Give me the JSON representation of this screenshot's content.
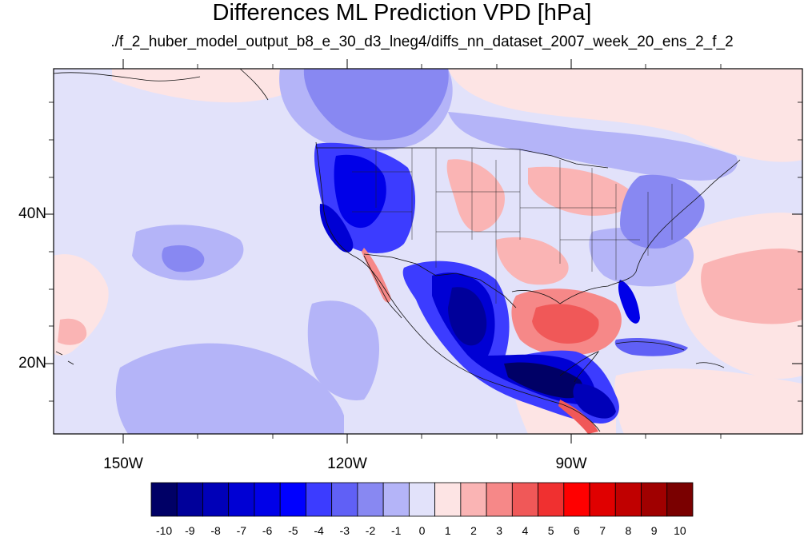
{
  "title": "Differences ML Prediction VPD [hPa]",
  "subtitle": "./f_2_huber_model_output_b8_e_30_d3_lneg4/diffs_nn_dataset_2007_week_20_ens_2_f_2",
  "longitude_labels": [
    "150W",
    "120W",
    "90W"
  ],
  "latitude_labels": [
    "40N",
    "20N"
  ],
  "colorbar": {
    "labels": [
      "-10",
      "-9",
      "-8",
      "-7",
      "-6",
      "-5",
      "-4",
      "-3",
      "-2",
      "-1",
      "0",
      "1",
      "2",
      "3",
      "4",
      "5",
      "6",
      "7",
      "8",
      "9",
      "10"
    ],
    "colors": [
      "#000066",
      "#00009a",
      "#0000b8",
      "#0000d4",
      "#0000e8",
      "#0000ff",
      "#3c3cff",
      "#6060f6",
      "#8888f2",
      "#b4b4f8",
      "#e2e2fa",
      "#fde4e4",
      "#fab4b4",
      "#f68888",
      "#f05858",
      "#f03030",
      "#ff0000",
      "#e00000",
      "#c00000",
      "#a00000",
      "#7a0000"
    ]
  },
  "colors": {
    "background_field": "#e2e2fa",
    "strong_negative": "#00009a",
    "positive": "#f68888"
  }
}
